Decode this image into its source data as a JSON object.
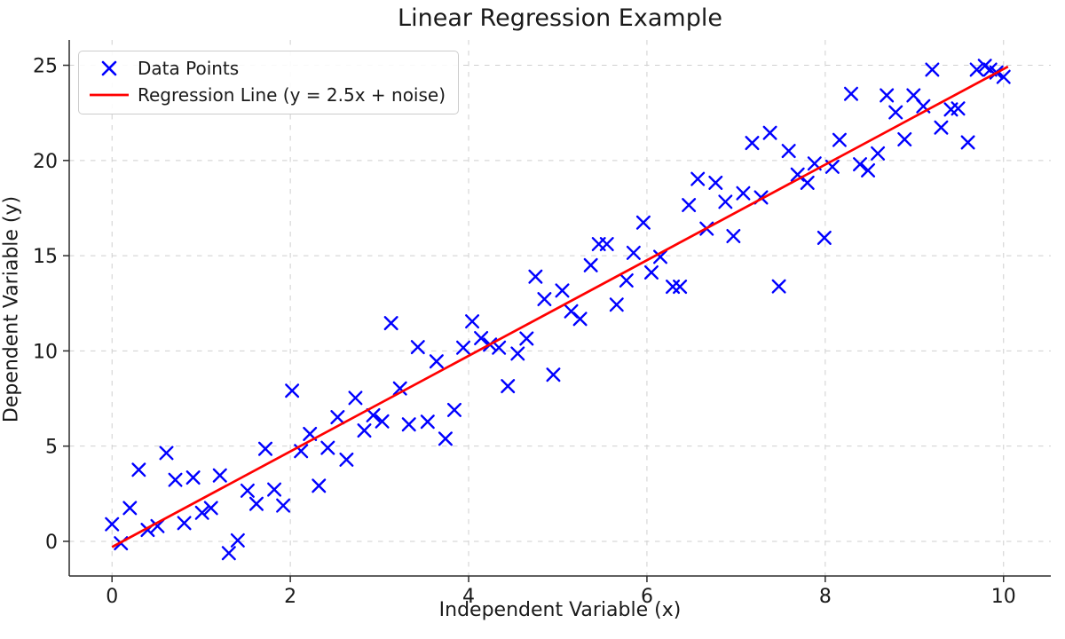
{
  "title": "Linear Regression Example",
  "legend": {
    "items": [
      {
        "label": "Data Points",
        "marker": "x",
        "color": "#0000ff"
      },
      {
        "label": "Regression Line (y = 2.5x + noise)",
        "marker": "line",
        "color": "#ff0000"
      }
    ]
  },
  "colors": {
    "scatter": "#0000ff",
    "line": "#ff0000",
    "grid": "#cfcfcf",
    "spine": "#2b2b2b",
    "text": "#1a1a1a"
  },
  "chart_data": {
    "type": "scatter",
    "title": "Linear Regression Example",
    "xlabel": "Independent Variable (x)",
    "ylabel": "Dependent Variable (y)",
    "xlim": [
      -0.48,
      10.53
    ],
    "ylim": [
      -1.82,
      26.33
    ],
    "x_ticks": [
      0,
      2,
      4,
      6,
      8,
      10
    ],
    "y_ticks": [
      0,
      5,
      10,
      15,
      20,
      25
    ],
    "grid": "dashed",
    "legend_position": "upper left",
    "series": [
      {
        "name": "Data Points",
        "type": "scatter",
        "marker": "x",
        "color": "#0000ff",
        "points": [
          [
            0.0,
            0.9
          ],
          [
            0.1,
            -0.1
          ],
          [
            0.2,
            1.75
          ],
          [
            0.3,
            3.76
          ],
          [
            0.4,
            0.6
          ],
          [
            0.51,
            0.8
          ],
          [
            0.61,
            4.64
          ],
          [
            0.71,
            3.23
          ],
          [
            0.81,
            0.96
          ],
          [
            0.91,
            3.35
          ],
          [
            1.01,
            1.5
          ],
          [
            1.11,
            1.75
          ],
          [
            1.21,
            3.46
          ],
          [
            1.31,
            -0.62
          ],
          [
            1.41,
            0.05
          ],
          [
            1.52,
            2.66
          ],
          [
            1.62,
            1.97
          ],
          [
            1.72,
            4.86
          ],
          [
            1.82,
            2.72
          ],
          [
            1.92,
            1.88
          ],
          [
            2.02,
            7.91
          ],
          [
            2.12,
            4.74
          ],
          [
            2.22,
            5.64
          ],
          [
            2.32,
            2.92
          ],
          [
            2.42,
            4.91
          ],
          [
            2.53,
            6.52
          ],
          [
            2.63,
            4.29
          ],
          [
            2.73,
            7.53
          ],
          [
            2.83,
            5.82
          ],
          [
            2.93,
            6.62
          ],
          [
            3.03,
            6.3
          ],
          [
            3.13,
            11.46
          ],
          [
            3.23,
            8.03
          ],
          [
            3.33,
            6.14
          ],
          [
            3.43,
            10.2
          ],
          [
            3.54,
            6.28
          ],
          [
            3.64,
            9.45
          ],
          [
            3.74,
            5.39
          ],
          [
            3.84,
            6.9
          ],
          [
            3.94,
            10.17
          ],
          [
            4.04,
            11.55
          ],
          [
            4.14,
            10.67
          ],
          [
            4.24,
            10.33
          ],
          [
            4.34,
            10.17
          ],
          [
            4.44,
            8.15
          ],
          [
            4.55,
            9.86
          ],
          [
            4.65,
            10.65
          ],
          [
            4.75,
            13.9
          ],
          [
            4.85,
            12.72
          ],
          [
            4.95,
            8.75
          ],
          [
            5.05,
            13.17
          ],
          [
            5.15,
            12.08
          ],
          [
            5.25,
            11.68
          ],
          [
            5.37,
            14.5
          ],
          [
            5.46,
            15.61
          ],
          [
            5.55,
            15.61
          ],
          [
            5.66,
            12.43
          ],
          [
            5.77,
            13.7
          ],
          [
            5.85,
            15.15
          ],
          [
            5.96,
            16.74
          ],
          [
            6.05,
            14.12
          ],
          [
            6.15,
            14.94
          ],
          [
            6.29,
            13.37
          ],
          [
            6.37,
            13.37
          ],
          [
            6.47,
            17.66
          ],
          [
            6.57,
            19.03
          ],
          [
            6.67,
            16.42
          ],
          [
            6.77,
            18.83
          ],
          [
            6.88,
            17.83
          ],
          [
            6.97,
            16.03
          ],
          [
            7.08,
            18.28
          ],
          [
            7.18,
            20.92
          ],
          [
            7.28,
            18.06
          ],
          [
            7.38,
            21.45
          ],
          [
            7.48,
            13.39
          ],
          [
            7.59,
            20.5
          ],
          [
            7.69,
            19.26
          ],
          [
            7.8,
            18.83
          ],
          [
            7.88,
            19.84
          ],
          [
            7.99,
            15.94
          ],
          [
            8.08,
            19.67
          ],
          [
            8.16,
            21.08
          ],
          [
            8.29,
            23.5
          ],
          [
            8.39,
            19.8
          ],
          [
            8.48,
            19.48
          ],
          [
            8.59,
            20.37
          ],
          [
            8.69,
            23.42
          ],
          [
            8.79,
            22.53
          ],
          [
            8.89,
            21.11
          ],
          [
            8.99,
            23.42
          ],
          [
            9.1,
            22.85
          ],
          [
            9.2,
            24.77
          ],
          [
            9.3,
            21.73
          ],
          [
            9.41,
            22.68
          ],
          [
            9.49,
            22.73
          ],
          [
            9.6,
            20.95
          ],
          [
            9.7,
            24.77
          ],
          [
            9.79,
            24.97
          ],
          [
            9.85,
            24.77
          ],
          [
            9.92,
            24.62
          ],
          [
            10.0,
            24.39
          ]
        ]
      },
      {
        "name": "Regression Line (y = 2.5x + noise)",
        "type": "line",
        "color": "#ff0000",
        "points": [
          [
            0.0,
            -0.3
          ],
          [
            10.05,
            24.93
          ]
        ]
      }
    ]
  }
}
